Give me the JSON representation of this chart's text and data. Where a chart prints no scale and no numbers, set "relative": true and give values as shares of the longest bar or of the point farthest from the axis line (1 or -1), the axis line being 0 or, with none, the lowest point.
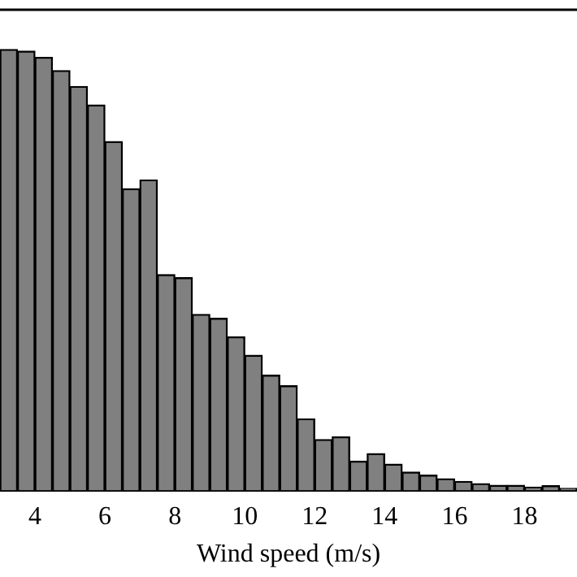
{
  "chart_data": {
    "type": "bar",
    "xlabel": "Wind speed (m/s)",
    "relative": true,
    "color": "#808080",
    "x": [
      3.25,
      3.75,
      4.25,
      4.75,
      5.25,
      5.75,
      6.25,
      6.75,
      7.25,
      7.75,
      8.25,
      8.75,
      9.25,
      9.75,
      10.25,
      10.75,
      11.25,
      11.75,
      12.25,
      12.75,
      13.25,
      13.75,
      14.25,
      14.75,
      15.25,
      15.75,
      16.25,
      16.75,
      17.25,
      17.75,
      18.25,
      18.75,
      19.25
    ],
    "values": [
      1,
      0.996,
      0.982,
      0.952,
      0.916,
      0.874,
      0.791,
      0.684,
      0.704,
      0.489,
      0.482,
      0.399,
      0.39,
      0.348,
      0.306,
      0.261,
      0.237,
      0.162,
      0.115,
      0.121,
      0.066,
      0.083,
      0.059,
      0.041,
      0.034,
      0.026,
      0.02,
      0.015,
      0.011,
      0.011,
      0.007,
      0.01,
      0.004
    ],
    "xlim": [
      3,
      19.5
    ],
    "xticks": [
      4,
      6,
      8,
      10,
      12,
      14,
      16,
      18
    ]
  }
}
